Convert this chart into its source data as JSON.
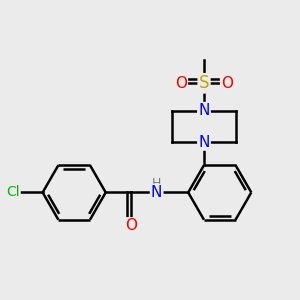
{
  "background_color": "#ebebeb",
  "bond_color": "#000000",
  "bond_width": 1.8,
  "atom_colors": {
    "C": "#000000",
    "N": "#0000ff",
    "O": "#ff0000",
    "S": "#bbaa00",
    "Cl": "#00bb00",
    "H": "#777777"
  },
  "font_size": 10,
  "figsize": [
    3.0,
    3.0
  ],
  "dpi": 100
}
